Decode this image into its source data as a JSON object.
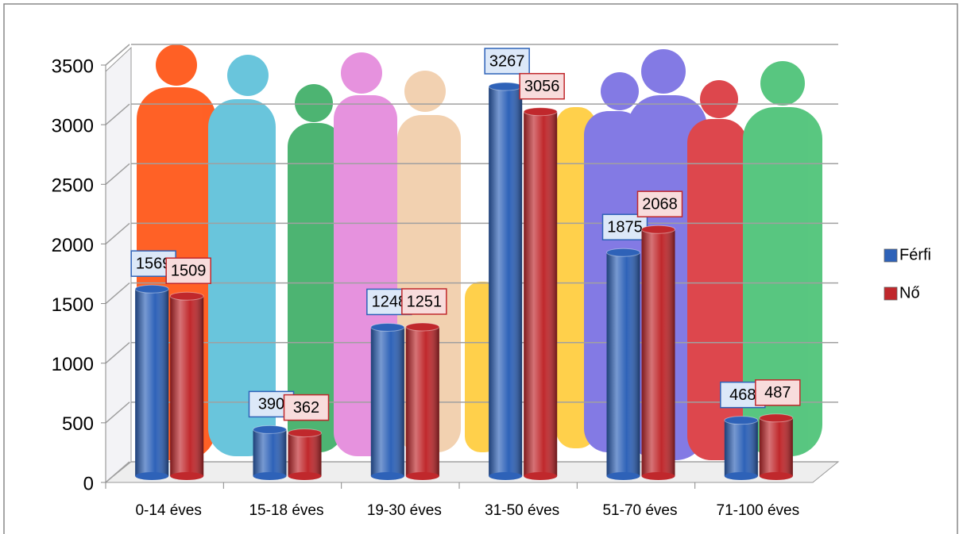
{
  "chart_data": {
    "type": "bar",
    "categories": [
      "0-14 éves",
      "15-18 éves",
      "19-30 éves",
      "31-50 éves",
      "51-70 éves",
      "71-100 éves"
    ],
    "series": [
      {
        "name": "Férfi",
        "color": "#2e62b8",
        "values": [
          1569,
          390,
          1248,
          3267,
          1875,
          468
        ]
      },
      {
        "name": "Nő",
        "color": "#c0282c",
        "values": [
          1509,
          362,
          1251,
          3056,
          2068,
          487
        ]
      }
    ],
    "ylim": [
      0,
      3500
    ],
    "yticks": [
      0,
      500,
      1000,
      1500,
      2000,
      2500,
      3000,
      3500
    ],
    "grid": true,
    "legend": "right"
  }
}
